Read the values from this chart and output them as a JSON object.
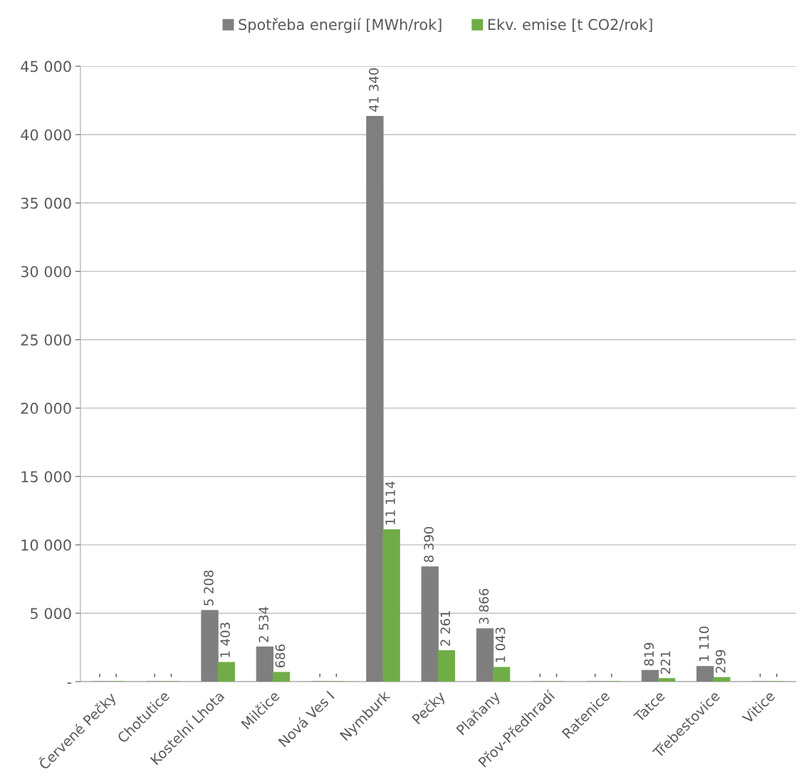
{
  "chart_data": {
    "type": "bar",
    "categories": [
      "Červené Pečky",
      "Chotutice",
      "Kostelní Lhota",
      "Milčice",
      "Nová Ves I",
      "Nymburk",
      "Pečky",
      "Plaňany",
      "Přov-Předhradí",
      "Ratenice",
      "Tatce",
      "Třebestovice",
      "Vitice"
    ],
    "series": [
      {
        "name": "Spotřeba energií [MWh/rok]",
        "color": "#7f7f7f",
        "values": [
          0,
          0,
          5208,
          2534,
          0,
          41340,
          8390,
          3866,
          0,
          0,
          819,
          1110,
          0
        ],
        "value_labels": [
          "-",
          "-",
          "5 208",
          "2 534",
          "-",
          "41 340",
          "8 390",
          "3 866",
          "-",
          "-",
          "819",
          "1 110",
          "-"
        ]
      },
      {
        "name": "Ekv. emise [t CO2/rok]",
        "color": "#70ad47",
        "values": [
          0,
          0,
          1403,
          686,
          0,
          11114,
          2261,
          1043,
          0,
          0,
          221,
          299,
          0
        ],
        "value_labels": [
          "-",
          "-",
          "1 403",
          "686",
          "-",
          "11 114",
          "2 261",
          "1 043",
          "-",
          "-",
          "221",
          "299",
          "-"
        ]
      }
    ],
    "ylim": [
      0,
      45000
    ],
    "yticks": [
      {
        "value": 0,
        "label": "-"
      },
      {
        "value": 5000,
        "label": "5 000"
      },
      {
        "value": 10000,
        "label": "10 000"
      },
      {
        "value": 15000,
        "label": "15 000"
      },
      {
        "value": 20000,
        "label": "20 000"
      },
      {
        "value": 25000,
        "label": "25 000"
      },
      {
        "value": 30000,
        "label": "30 000"
      },
      {
        "value": 35000,
        "label": "35 000"
      },
      {
        "value": 40000,
        "label": "40 000"
      },
      {
        "value": 45000,
        "label": "45 000"
      }
    ],
    "grid": "y",
    "legend": "top"
  }
}
